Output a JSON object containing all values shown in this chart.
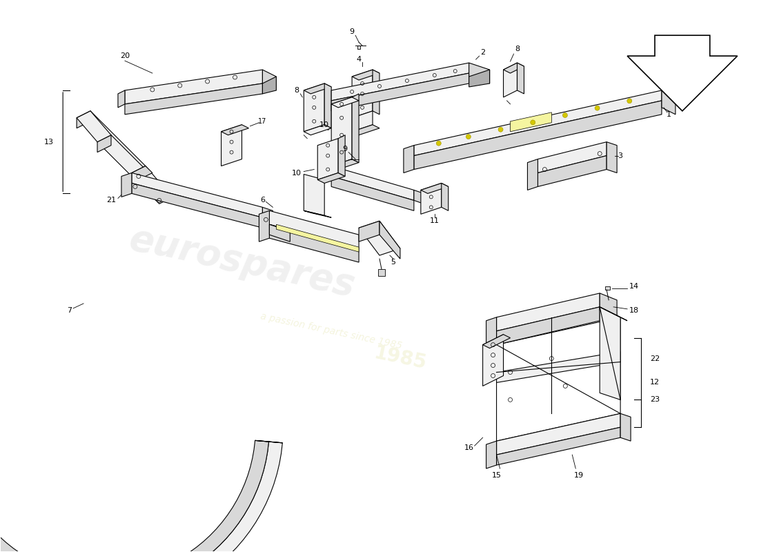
{
  "background_color": "#ffffff",
  "line_color": "#000000",
  "fill_light": "#f0f0f0",
  "fill_mid": "#d8d8d8",
  "fill_dark": "#b0b0b0",
  "fill_yellow": "#f5f5a0",
  "watermark1": "eurospares",
  "watermark2": "a passion for parts since 1985",
  "lw": 0.8
}
